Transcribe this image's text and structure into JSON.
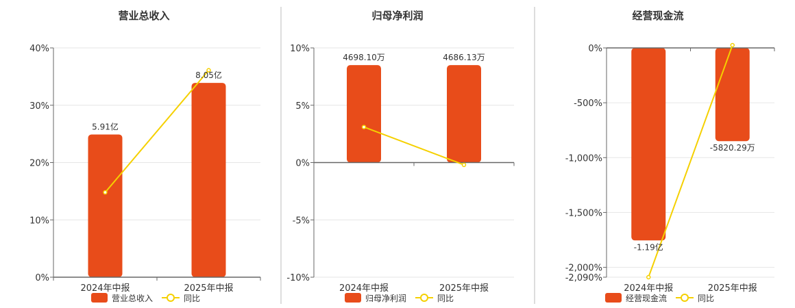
{
  "colors": {
    "bar": "#E84C1A",
    "yoy": "#F5D000",
    "axis": "#666666",
    "grid": "#e6e6e6",
    "divider": "#bbbbbb"
  },
  "chart_data": [
    {
      "type": "bar",
      "title": "营业总收入",
      "categories": [
        "2024年中报",
        "2025年中报"
      ],
      "series": [
        {
          "name": "营业总收入",
          "type": "bar",
          "values": [
            24.9,
            33.9
          ],
          "data_labels": [
            "5.91亿",
            "8.05亿"
          ]
        },
        {
          "name": "同比",
          "type": "line",
          "values": [
            14.8,
            36.1
          ]
        }
      ],
      "ylim": [
        0,
        40
      ],
      "yticks": [
        0,
        10,
        20,
        30,
        40
      ],
      "ytick_labels": [
        "0%",
        "10%",
        "20%",
        "30%",
        "40%"
      ],
      "grid": true,
      "legend": "bottom"
    },
    {
      "type": "bar",
      "title": "归母净利润",
      "categories": [
        "2024年中报",
        "2025年中报"
      ],
      "series": [
        {
          "name": "归母净利润",
          "type": "bar",
          "values": [
            8.5,
            8.5
          ],
          "data_labels": [
            "4698.10万",
            "4686.13万"
          ]
        },
        {
          "name": "同比",
          "type": "line",
          "values": [
            3.1,
            -0.2
          ]
        }
      ],
      "ylim": [
        -10,
        10
      ],
      "yticks": [
        -10,
        -5,
        0,
        5,
        10
      ],
      "ytick_labels": [
        "-10%",
        "-5%",
        "0%",
        "5%",
        "10%"
      ],
      "grid": true,
      "legend": "bottom"
    },
    {
      "type": "bar",
      "title": "经营现金流",
      "categories": [
        "2024年中报",
        "2025年中报"
      ],
      "series": [
        {
          "name": "经营现金流",
          "type": "bar",
          "values": [
            -1755,
            -850
          ],
          "data_labels": [
            "-1.19亿",
            "-5820.29万"
          ]
        },
        {
          "name": "同比",
          "type": "line",
          "values": [
            -2090,
            25
          ]
        }
      ],
      "ylim": [
        -2090,
        0
      ],
      "yticks": [
        -2090,
        -2000,
        -1500,
        -1000,
        -500,
        0
      ],
      "ytick_labels": [
        "-2,090%",
        "-2,000%",
        "-1,500%",
        "-1,000%",
        "-500%",
        "0%"
      ],
      "grid": true,
      "legend": "bottom"
    }
  ],
  "legend_labels": {
    "line": "同比"
  }
}
